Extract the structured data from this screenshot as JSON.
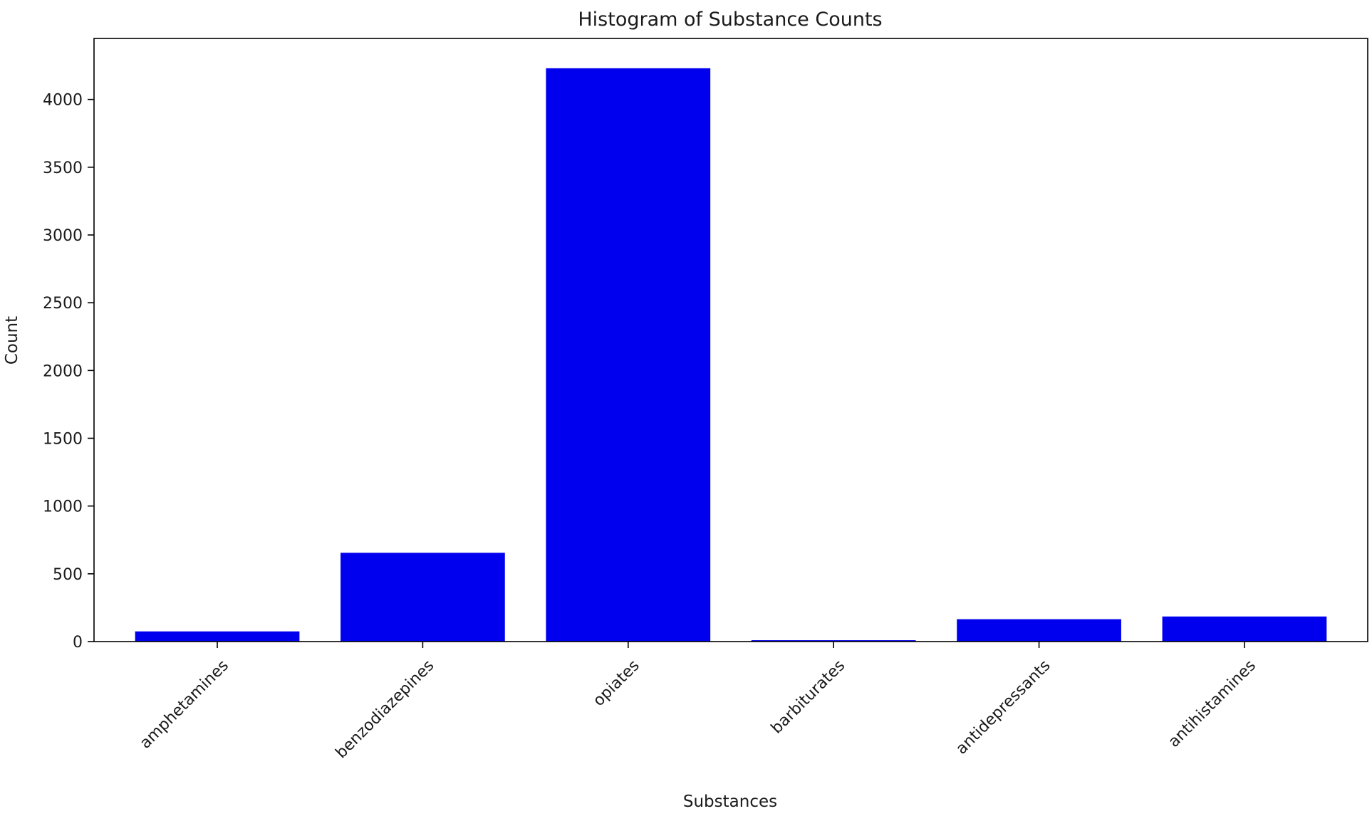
{
  "chart_data": {
    "type": "bar",
    "title": "Histogram of Substance Counts",
    "xlabel": "Substances",
    "ylabel": "Count",
    "categories": [
      "amphetamines",
      "benzodiazepines",
      "opiates",
      "barbiturates",
      "antidepressants",
      "antihistamines"
    ],
    "values": [
      75,
      655,
      4230,
      10,
      165,
      185
    ],
    "ylim": [
      0,
      4450
    ],
    "yticks": [
      0,
      500,
      1000,
      1500,
      2000,
      2500,
      3000,
      3500,
      4000
    ],
    "bar_color": "#0000ee",
    "grid": false,
    "legend": "none"
  }
}
